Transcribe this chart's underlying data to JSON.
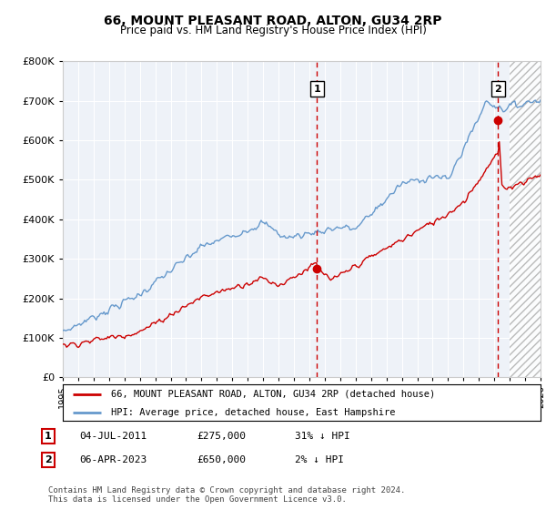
{
  "title": "66, MOUNT PLEASANT ROAD, ALTON, GU34 2RP",
  "subtitle": "Price paid vs. HM Land Registry's House Price Index (HPI)",
  "ylim": [
    0,
    800000
  ],
  "yticks": [
    0,
    100000,
    200000,
    300000,
    400000,
    500000,
    600000,
    700000,
    800000
  ],
  "xlim": [
    1995,
    2026
  ],
  "vline1_year": 2011.5,
  "vline2_year": 2023.25,
  "sale1": {
    "year": 2011.5,
    "price": 275000,
    "label": "1"
  },
  "sale2": {
    "year": 2023.25,
    "price": 650000,
    "label": "2"
  },
  "red_color": "#cc0000",
  "blue_color": "#6699cc",
  "background_color": "#eef2f8",
  "hatch_start": 2024.0,
  "legend1_text": "66, MOUNT PLEASANT ROAD, ALTON, GU34 2RP (detached house)",
  "legend2_text": "HPI: Average price, detached house, East Hampshire",
  "footer": "Contains HM Land Registry data © Crown copyright and database right 2024.\nThis data is licensed under the Open Government Licence v3.0.",
  "table_rows": [
    {
      "num": "1",
      "date": "04-JUL-2011",
      "price": "£275,000",
      "pct": "31% ↓ HPI"
    },
    {
      "num": "2",
      "date": "06-APR-2023",
      "price": "£650,000",
      "pct": "2% ↓ HPI"
    }
  ]
}
